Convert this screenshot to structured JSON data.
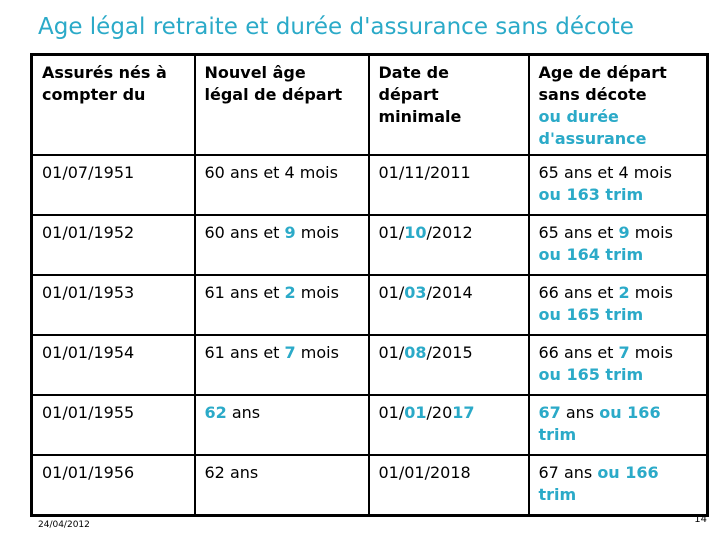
{
  "title": "Age légal retraite et durée d'assurance sans décote",
  "colors": {
    "accent": "#2BAAC8",
    "text": "#000000",
    "border": "#000000",
    "background": "#FFFFFF"
  },
  "table": {
    "column_headers": [
      [
        {
          "t": "Assurés nés à"
        },
        {
          "t": "compter du",
          "br": true
        }
      ],
      [
        {
          "t": "Nouvel âge"
        },
        {
          "t": "légal de départ",
          "br": true
        }
      ],
      [
        {
          "t": "Date de"
        },
        {
          "t": "départ",
          "br": true
        },
        {
          "t": "minimale",
          "br": true
        }
      ],
      [
        {
          "t": "Age de départ"
        },
        {
          "t": "sans décote",
          "br": true
        },
        {
          "t": "ou durée",
          "s": "a",
          "br": true
        },
        {
          "t": "d'assurance",
          "s": "a",
          "br": true
        }
      ]
    ],
    "rows": [
      [
        [
          {
            "t": "01/07/1951"
          }
        ],
        [
          {
            "t": "60 ans et 4 mois"
          }
        ],
        [
          {
            "t": "01/11/2011"
          }
        ],
        [
          {
            "t": "65 ans et 4 mois"
          },
          {
            "t": "ou 163 trim",
            "s": "a",
            "br": true
          }
        ]
      ],
      [
        [
          {
            "t": "01/01/1952"
          }
        ],
        [
          {
            "t": "60 ans et "
          },
          {
            "t": "9",
            "s": "a"
          },
          {
            "t": " mois"
          }
        ],
        [
          {
            "t": "01/"
          },
          {
            "t": "10",
            "s": "a"
          },
          {
            "t": "/2012"
          }
        ],
        [
          {
            "t": "65 ans et "
          },
          {
            "t": "9",
            "s": "a"
          },
          {
            "t": " mois"
          },
          {
            "t": "ou 164 trim",
            "s": "a",
            "br": true
          }
        ]
      ],
      [
        [
          {
            "t": "01/01/1953"
          }
        ],
        [
          {
            "t": "61 ans et "
          },
          {
            "t": "2",
            "s": "a"
          },
          {
            "t": " mois"
          }
        ],
        [
          {
            "t": "01/"
          },
          {
            "t": "03",
            "s": "a"
          },
          {
            "t": "/2014"
          }
        ],
        [
          {
            "t": "66 ans et "
          },
          {
            "t": "2",
            "s": "a"
          },
          {
            "t": " mois"
          },
          {
            "t": "ou 165 trim",
            "s": "a",
            "br": true
          }
        ]
      ],
      [
        [
          {
            "t": "01/01/1954"
          }
        ],
        [
          {
            "t": "61 ans et "
          },
          {
            "t": "7",
            "s": "a"
          },
          {
            "t": " mois"
          }
        ],
        [
          {
            "t": "01/"
          },
          {
            "t": "08",
            "s": "a"
          },
          {
            "t": "/2015"
          }
        ],
        [
          {
            "t": "66 ans et "
          },
          {
            "t": "7",
            "s": "a"
          },
          {
            "t": " mois"
          },
          {
            "t": "ou 165 trim",
            "s": "a",
            "br": true
          }
        ]
      ],
      [
        [
          {
            "t": "01/01/1955"
          }
        ],
        [
          {
            "t": "62",
            "s": "a"
          },
          {
            "t": " ans"
          }
        ],
        [
          {
            "t": "01/"
          },
          {
            "t": "01",
            "s": "a"
          },
          {
            "t": "/20"
          },
          {
            "t": "17",
            "s": "a"
          }
        ],
        [
          {
            "t": "67",
            "s": "a"
          },
          {
            "t": " ans "
          },
          {
            "t": " ou 166",
            "s": "a"
          },
          {
            "t": "trim",
            "s": "a",
            "br": true
          }
        ]
      ],
      [
        [
          {
            "t": "01/01/1956"
          }
        ],
        [
          {
            "t": "62 ans"
          }
        ],
        [
          {
            "t": "01/01/2018"
          }
        ],
        [
          {
            "t": "67 ans "
          },
          {
            "t": "ou 166",
            "s": "a"
          },
          {
            "t": "trim",
            "s": "a",
            "br": true
          }
        ]
      ]
    ]
  },
  "footer": {
    "date": "24/04/2012",
    "page_number": "14"
  }
}
